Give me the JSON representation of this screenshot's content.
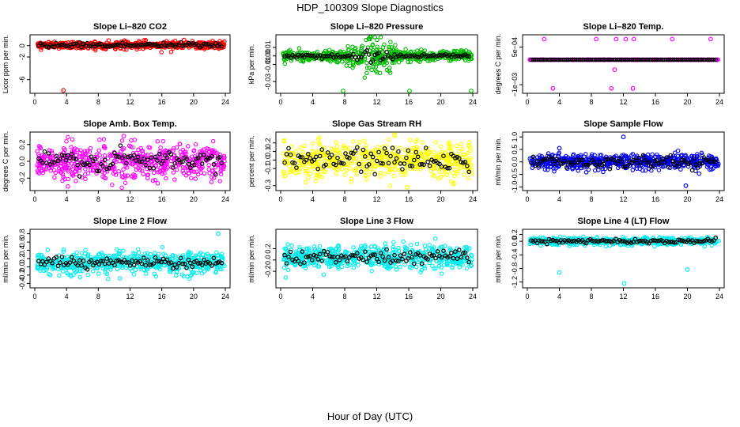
{
  "figure": {
    "title": "HDP_100309  Slope Diagnostics",
    "xlabel": "Hour of Day (UTC)"
  },
  "chart_data": [
    {
      "type": "scatter",
      "title": "Slope Li–820 CO2",
      "ylabel": "Licor ppm per min.",
      "xlim": [
        0,
        24
      ],
      "xticks": [
        "0",
        "4",
        "8",
        "12",
        "16",
        "20",
        "24"
      ],
      "ylim": [
        -8,
        1.5
      ],
      "yticks": [
        {
          "v": 0,
          "label": "0"
        },
        {
          "v": -2,
          "label": "-2"
        },
        {
          "v": -6,
          "label": "-6"
        }
      ],
      "color": "#ff0000",
      "center": 0.1,
      "spread": 0.6,
      "black_spread": 0.5,
      "n": 600,
      "outliers": [
        {
          "x": 3.6,
          "y": -7.9
        },
        {
          "x": 11.3,
          "y": 0.9
        },
        {
          "x": 18.8,
          "y": 1.0
        }
      ]
    },
    {
      "type": "scatter",
      "title": "Slope Li–820 Pressure",
      "ylabel": "kPa per min.",
      "xlim": [
        0,
        24
      ],
      "xticks": [
        "0",
        "4",
        "8",
        "12",
        "16",
        "20",
        "24"
      ],
      "ylim": [
        -0.041,
        0.022
      ],
      "yticks": [
        {
          "v": 0.01,
          "label": "0.01"
        },
        {
          "v": 0.0,
          "label": "0.00"
        },
        {
          "v": -0.01,
          "label": "-0.01"
        },
        {
          "v": -0.03,
          "label": "-0.03"
        }
      ],
      "color": "#00bb00",
      "center": 0.0,
      "spread": 0.012,
      "black_spread": 0.004,
      "n": 600,
      "outliers": [
        {
          "x": 7.8,
          "y": -0.041
        },
        {
          "x": 16.1,
          "y": -0.041
        },
        {
          "x": 23.8,
          "y": -0.041
        },
        {
          "x": 11.0,
          "y": 0.02
        }
      ]
    },
    {
      "type": "scatter",
      "title": "Slope Li–820 Temp.",
      "ylabel": "degrees C per min.",
      "xlim": [
        0,
        24
      ],
      "xticks": [
        "0",
        "4",
        "8",
        "12",
        "16",
        "20",
        "24"
      ],
      "ylim": [
        -0.00125,
        0.0009
      ],
      "yticks": [
        {
          "v": 0.0005,
          "label": "5e−04"
        },
        {
          "v": -0.001,
          "label": "−1e−03"
        }
      ],
      "color": "#ff00ff",
      "center": 0.0,
      "spread": 0.0,
      "black_spread": 0.0,
      "n": 300,
      "outliers": [
        {
          "x": 2.1,
          "y": 0.00082
        },
        {
          "x": 8.6,
          "y": 0.00082
        },
        {
          "x": 11.1,
          "y": 0.00082
        },
        {
          "x": 12.3,
          "y": 0.00082
        },
        {
          "x": 13.3,
          "y": 0.00082
        },
        {
          "x": 18.1,
          "y": 0.00082
        },
        {
          "x": 22.9,
          "y": 0.00082
        },
        {
          "x": 10.9,
          "y": -0.0004
        },
        {
          "x": 3.2,
          "y": -0.00115
        },
        {
          "x": 10.5,
          "y": -0.00115
        },
        {
          "x": 13.2,
          "y": -0.00115
        }
      ]
    },
    {
      "type": "scatter",
      "title": "Slope Amb. Box Temp.",
      "ylabel": "degrees C per min.",
      "xlim": [
        0,
        24
      ],
      "xticks": [
        "0",
        "4",
        "8",
        "12",
        "16",
        "20",
        "24"
      ],
      "ylim": [
        -0.32,
        0.32
      ],
      "yticks": [
        {
          "v": 0.2,
          "label": "0.2"
        },
        {
          "v": 0.0,
          "label": "0.0"
        },
        {
          "v": -0.2,
          "label": "-0.2"
        }
      ],
      "color": "#ff00ff",
      "center": 0.0,
      "spread": 0.2,
      "black_spread": 0.15,
      "n": 600,
      "outliers": [
        {
          "x": 11.2,
          "y": 0.3
        }
      ]
    },
    {
      "type": "scatter",
      "title": "Slope Gas Stream RH",
      "ylabel": "percent per min.",
      "xlim": [
        0,
        24
      ],
      "xticks": [
        "0",
        "4",
        "8",
        "12",
        "16",
        "20",
        "24"
      ],
      "ylim": [
        -0.33,
        0.3
      ],
      "yticks": [
        {
          "v": 0.2,
          "label": "0.2"
        },
        {
          "v": 0.1,
          "label": "0.1"
        },
        {
          "v": 0.0,
          "label": "0.0"
        },
        {
          "v": -0.1,
          "label": "-0.1"
        },
        {
          "v": -0.3,
          "label": "-0.3"
        }
      ],
      "color": "#ffff00",
      "center": 0.0,
      "spread": 0.2,
      "black_spread": 0.15,
      "n": 600,
      "outliers": [
        {
          "x": 15.8,
          "y": -0.32
        }
      ]
    },
    {
      "type": "scatter",
      "title": "Slope Sample Flow",
      "ylabel": "ml/min per min.",
      "xlim": [
        0,
        24
      ],
      "xticks": [
        "0",
        "4",
        "8",
        "12",
        "16",
        "20",
        "24"
      ],
      "ylim": [
        -1.05,
        1.1
      ],
      "yticks": [
        {
          "v": 1.0,
          "label": "1.0"
        },
        {
          "v": 0.5,
          "label": "0.5"
        },
        {
          "v": 0.0,
          "label": "0.0"
        },
        {
          "v": -0.5,
          "label": "-0.5"
        },
        {
          "v": -1.0,
          "label": "-1.0"
        }
      ],
      "color": "#0000ee",
      "center": 0.0,
      "spread": 0.3,
      "black_spread": 0.25,
      "n": 600,
      "outliers": [
        {
          "x": 12.0,
          "y": 1.0
        },
        {
          "x": 19.8,
          "y": -0.95
        },
        {
          "x": 4.0,
          "y": 0.55
        }
      ]
    },
    {
      "type": "scatter",
      "title": "Slope Line 2 Flow",
      "ylabel": "ml/min per min.",
      "xlim": [
        0,
        24
      ],
      "xticks": [
        "0",
        "4",
        "8",
        "12",
        "16",
        "20",
        "24"
      ],
      "ylim": [
        -0.45,
        0.85
      ],
      "yticks": [
        {
          "v": 0.8,
          "label": "0.8"
        },
        {
          "v": 0.6,
          "label": "0.6"
        },
        {
          "v": 0.4,
          "label": "0.4"
        },
        {
          "v": 0.2,
          "label": "0.2"
        },
        {
          "v": 0.0,
          "label": "0.0"
        },
        {
          "v": -0.2,
          "label": "-0.2"
        },
        {
          "v": -0.4,
          "label": "-0.4"
        }
      ],
      "color": "#00eeee",
      "center": 0.1,
      "spread": 0.25,
      "black_spread": 0.15,
      "n": 600,
      "outliers": [
        {
          "x": 23.1,
          "y": 0.8
        }
      ]
    },
    {
      "type": "scatter",
      "title": "Slope Line 3 Flow",
      "ylabel": "ml/min per min.",
      "xlim": [
        0,
        24
      ],
      "xticks": [
        "0",
        "4",
        "8",
        "12",
        "16",
        "20",
        "24"
      ],
      "ylim": [
        -0.45,
        0.5
      ],
      "yticks": [
        {
          "v": 0.2,
          "label": "0.2"
        },
        {
          "v": 0.0,
          "label": "0.0"
        },
        {
          "v": -0.2,
          "label": "-0.2"
        }
      ],
      "color": "#00eeee",
      "center": 0.05,
      "spread": 0.2,
      "black_spread": 0.15,
      "n": 600,
      "outliers": []
    },
    {
      "type": "scatter",
      "title": "Slope Line 4 (LT) Flow",
      "ylabel": "ml/min per min.",
      "xlim": [
        0,
        24
      ],
      "xticks": [
        "0",
        "4",
        "8",
        "12",
        "16",
        "20",
        "24"
      ],
      "ylim": [
        -1.3,
        0.28
      ],
      "yticks": [
        {
          "v": 0.2,
          "label": "0.2"
        },
        {
          "v": 0.0,
          "label": "0.0"
        },
        {
          "v": -0.4,
          "label": "-0.4"
        },
        {
          "v": -0.8,
          "label": "-0.8"
        },
        {
          "v": -1.2,
          "label": "-1.2"
        }
      ],
      "color": "#00eeee",
      "center": 0.0,
      "spread": 0.1,
      "black_spread": 0.07,
      "n": 600,
      "outliers": [
        {
          "x": 4.0,
          "y": -0.92
        },
        {
          "x": 20.0,
          "y": -0.83
        },
        {
          "x": 12.1,
          "y": -1.24
        }
      ]
    }
  ]
}
